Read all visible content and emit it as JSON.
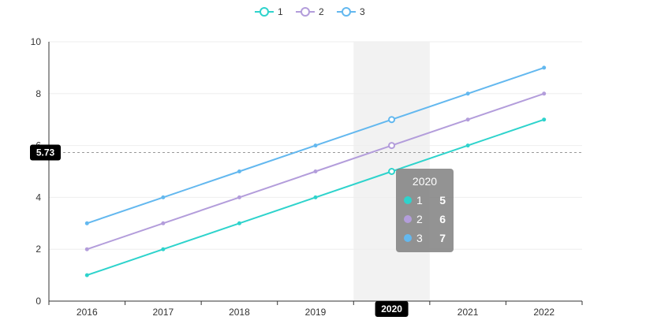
{
  "chart_data": {
    "type": "line",
    "categories": [
      "2016",
      "2017",
      "2018",
      "2019",
      "2020",
      "2021",
      "2022"
    ],
    "series": [
      {
        "name": "1",
        "color": "#2ed3cc",
        "values": [
          1,
          2,
          3,
          4,
          5,
          6,
          7
        ]
      },
      {
        "name": "2",
        "color": "#b39ddb",
        "values": [
          2,
          3,
          4,
          5,
          6,
          7,
          8
        ]
      },
      {
        "name": "3",
        "color": "#63b8ef",
        "values": [
          3,
          4,
          5,
          6,
          7,
          8,
          9
        ]
      }
    ],
    "ylim": [
      0,
      10
    ],
    "yticks": [
      0,
      2,
      4,
      6,
      8,
      10
    ],
    "grid": true,
    "legend_position": "top-center",
    "pointer": {
      "category": "2020",
      "y_value": "5.73",
      "y_value_num": 5.73,
      "highlight_color": "#f2f2f2"
    }
  },
  "tooltip": {
    "title": "2020",
    "rows": [
      {
        "name": "1",
        "value": "5",
        "color": "#2ed3cc"
      },
      {
        "name": "2",
        "value": "6",
        "color": "#b39ddb"
      },
      {
        "name": "3",
        "value": "7",
        "color": "#63b8ef"
      }
    ]
  }
}
